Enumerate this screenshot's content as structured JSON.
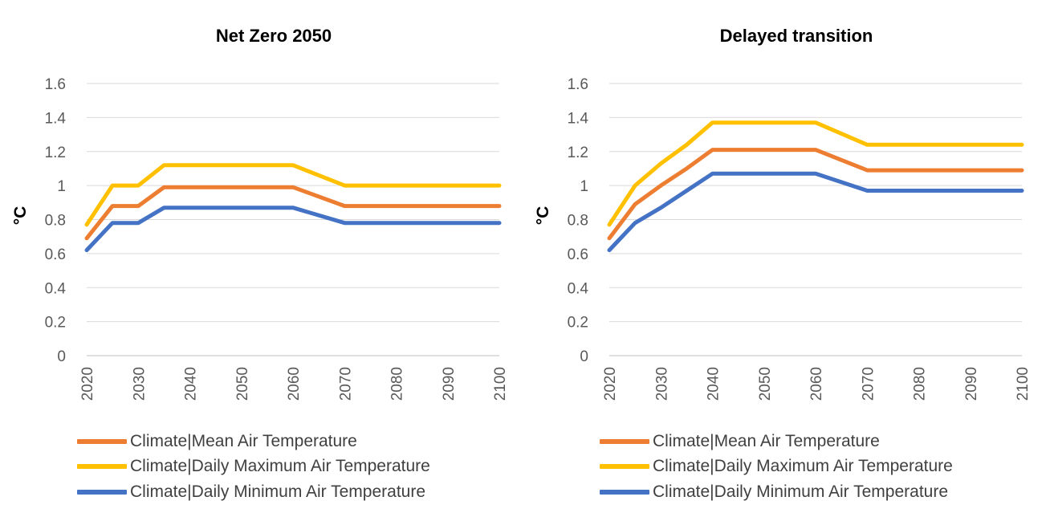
{
  "chart_data": [
    {
      "type": "line",
      "title": "Net Zero 2050",
      "xlabel": "",
      "ylabel": "°C",
      "ylim": [
        0,
        1.6
      ],
      "yticks": [
        0,
        0.2,
        0.4,
        0.6,
        0.8,
        1,
        1.2,
        1.4,
        1.6
      ],
      "ytick_labels": [
        "0",
        "0.2",
        "0.4",
        "0.6",
        "0.8",
        "1",
        "1.2",
        "1.4",
        "1.6"
      ],
      "xlim": [
        2020,
        2100
      ],
      "xticks": [
        "2020",
        "2030",
        "2040",
        "2050",
        "2060",
        "2070",
        "2080",
        "2090",
        "2100"
      ],
      "grid": true,
      "legend_position": "bottom",
      "x": [
        2020,
        2025,
        2030,
        2035,
        2040,
        2050,
        2060,
        2070,
        2080,
        2090,
        2100
      ],
      "series": [
        {
          "name": "Climate|Mean Air Temperature",
          "color": "#ED7D31",
          "values": [
            0.69,
            0.88,
            0.88,
            0.99,
            0.99,
            0.99,
            0.99,
            0.88,
            0.88,
            0.88,
            0.88
          ]
        },
        {
          "name": "Climate|Daily Maximum Air Temperature",
          "color": "#FFC000",
          "values": [
            0.77,
            1.0,
            1.0,
            1.12,
            1.12,
            1.12,
            1.12,
            1.0,
            1.0,
            1.0,
            1.0
          ]
        },
        {
          "name": "Climate|Daily Minimum Air Temperature",
          "color": "#4472C4",
          "values": [
            0.62,
            0.78,
            0.78,
            0.87,
            0.87,
            0.87,
            0.87,
            0.78,
            0.78,
            0.78,
            0.78
          ]
        }
      ]
    },
    {
      "type": "line",
      "title": "Delayed transition",
      "xlabel": "",
      "ylabel": "°C",
      "ylim": [
        0,
        1.6
      ],
      "yticks": [
        0,
        0.2,
        0.4,
        0.6,
        0.8,
        1,
        1.2,
        1.4,
        1.6
      ],
      "ytick_labels": [
        "0",
        "0.2",
        "0.4",
        "0.6",
        "0.8",
        "1",
        "1.2",
        "1.4",
        "1.6"
      ],
      "xlim": [
        2020,
        2100
      ],
      "xticks": [
        "2020",
        "2030",
        "2040",
        "2050",
        "2060",
        "2070",
        "2080",
        "2090",
        "2100"
      ],
      "grid": true,
      "legend_position": "bottom",
      "x": [
        2020,
        2025,
        2030,
        2035,
        2040,
        2050,
        2060,
        2070,
        2080,
        2090,
        2100
      ],
      "series": [
        {
          "name": "Climate|Mean Air Temperature",
          "color": "#ED7D31",
          "values": [
            0.69,
            0.89,
            1.0,
            1.1,
            1.21,
            1.21,
            1.21,
            1.09,
            1.09,
            1.09,
            1.09
          ]
        },
        {
          "name": "Climate|Daily Maximum Air Temperature",
          "color": "#FFC000",
          "values": [
            0.77,
            1.0,
            1.13,
            1.24,
            1.37,
            1.37,
            1.37,
            1.24,
            1.24,
            1.24,
            1.24
          ]
        },
        {
          "name": "Climate|Daily Minimum Air Temperature",
          "color": "#4472C4",
          "values": [
            0.62,
            0.78,
            0.87,
            0.97,
            1.07,
            1.07,
            1.07,
            0.97,
            0.97,
            0.97,
            0.97
          ]
        }
      ]
    }
  ]
}
